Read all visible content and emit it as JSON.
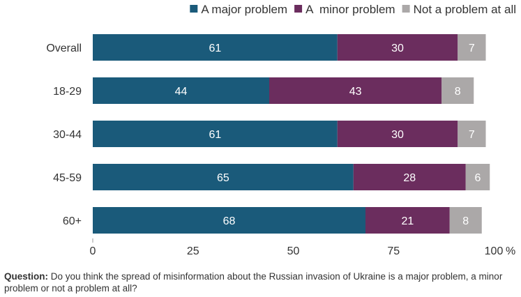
{
  "chart_data": {
    "type": "bar",
    "orientation": "horizontal",
    "stacked": true,
    "categories": [
      "Overall",
      "18-29",
      "30-44",
      "45-59",
      "60+"
    ],
    "series": [
      {
        "name": "A major problem",
        "values": [
          61,
          44,
          61,
          65,
          68
        ],
        "color": "#1a5a7a"
      },
      {
        "name": "A  minor problem",
        "values": [
          30,
          43,
          30,
          28,
          21
        ],
        "color": "#6b2d5e"
      },
      {
        "name": "Not a problem at all",
        "values": [
          7,
          8,
          7,
          6,
          8
        ],
        "color": "#aba8a8"
      }
    ],
    "xlim": [
      0,
      100
    ],
    "xticks": [
      "0",
      "25",
      "50",
      "75",
      "100"
    ],
    "x_unit": "%",
    "legend_position": "top-right",
    "grid": false
  },
  "footnote": {
    "label": "Question:",
    "text": " Do you think the spread of misinformation about the Russian invasion of Ukraine is a major problem, a minor problem or not a problem at all?"
  }
}
